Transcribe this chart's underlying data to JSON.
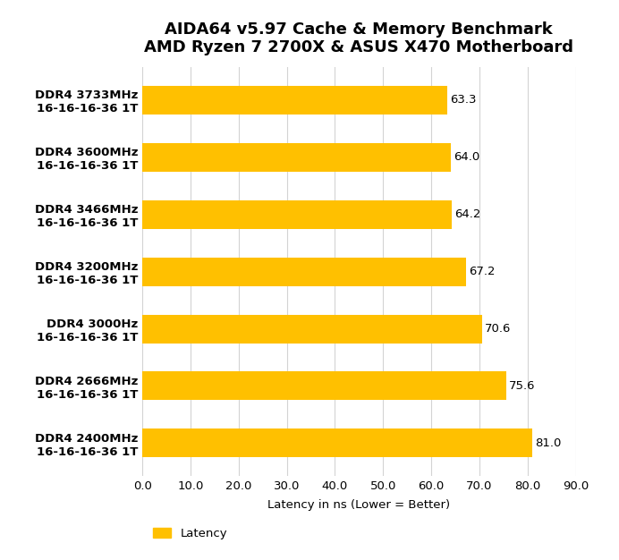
{
  "title_line1": "AIDA64 v5.97 Cache & Memory Benchmark",
  "title_line2": "AMD Ryzen 7 2700X & ASUS X470 Motherboard",
  "categories": [
    "DDR4 3733MHz\n16-16-16-36 1T",
    "DDR4 3600MHz\n16-16-16-36 1T",
    "DDR4 3466MHz\n16-16-16-36 1T",
    "DDR4 3200MHz\n16-16-16-36 1T",
    "DDR4 3000Hz\n16-16-16-36 1T",
    "DDR4 2666MHz\n16-16-16-36 1T",
    "DDR4 2400MHz\n16-16-16-36 1T"
  ],
  "values": [
    63.3,
    64.0,
    64.2,
    67.2,
    70.6,
    75.6,
    81.0
  ],
  "bar_color": "#FFC000",
  "xlabel": "Latency in ns (Lower = Better)",
  "xlim": [
    0,
    90
  ],
  "xticks": [
    0.0,
    10.0,
    20.0,
    30.0,
    40.0,
    50.0,
    60.0,
    70.0,
    80.0,
    90.0
  ],
  "legend_label": "Latency",
  "title_fontsize": 13,
  "label_fontsize": 9.5,
  "tick_fontsize": 9.5,
  "value_fontsize": 9.5,
  "ylabel_fontsize": 9.5,
  "background_color": "#FFFFFF",
  "grid_color": "#D3D3D3"
}
